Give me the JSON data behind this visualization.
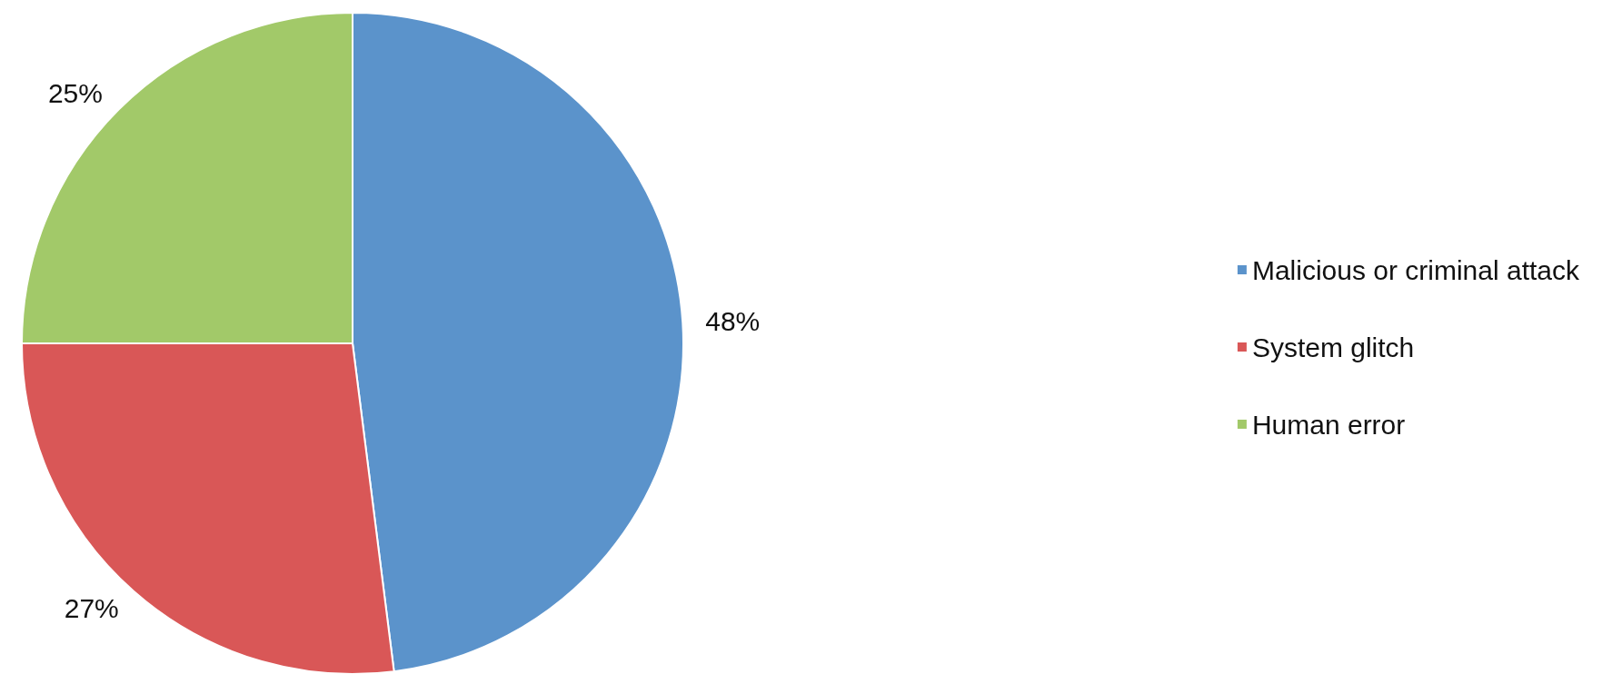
{
  "chart_data": {
    "type": "pie",
    "categories": [
      "Malicious or criminal attack",
      "System glitch",
      "Human error"
    ],
    "values": [
      48,
      27,
      25
    ],
    "colors": [
      "#5b93cb",
      "#d95757",
      "#a2c969"
    ],
    "value_labels": [
      "48%",
      "27%",
      "25%"
    ],
    "legend": "right"
  }
}
